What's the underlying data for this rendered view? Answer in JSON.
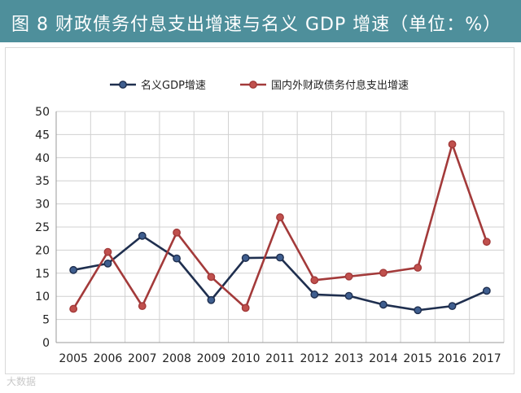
{
  "header": {
    "title": "图 8  财政债务付息支出增速与名义 GDP 增速（单位：%）",
    "background_color": "#4e8f9b"
  },
  "watermark": "大数据",
  "chart_data": {
    "type": "line",
    "title": "",
    "xlabel": "",
    "ylabel": "",
    "categories": [
      "2005",
      "2006",
      "2007",
      "2008",
      "2009",
      "2010",
      "2011",
      "2012",
      "2013",
      "2014",
      "2015",
      "2016",
      "2017"
    ],
    "ylim": [
      0,
      50
    ],
    "yticks": [
      0,
      5,
      10,
      15,
      20,
      25,
      30,
      35,
      40,
      45,
      50
    ],
    "grid": true,
    "legend_position": "top-center",
    "series": [
      {
        "name": "名义GDP增速",
        "color": "#1f2f4f",
        "marker_fill": "#3f5e8f",
        "values": [
          15.7,
          17.1,
          23.1,
          18.2,
          9.2,
          18.3,
          18.4,
          10.4,
          10.1,
          8.2,
          7.0,
          7.9,
          11.2
        ]
      },
      {
        "name": "国内外财政债务付息支出增速",
        "color": "#a33a3a",
        "marker_fill": "#c0504d",
        "values": [
          7.3,
          19.6,
          7.9,
          23.8,
          14.2,
          7.5,
          27.1,
          13.5,
          14.3,
          15.1,
          16.2,
          42.9,
          21.8
        ]
      }
    ]
  }
}
